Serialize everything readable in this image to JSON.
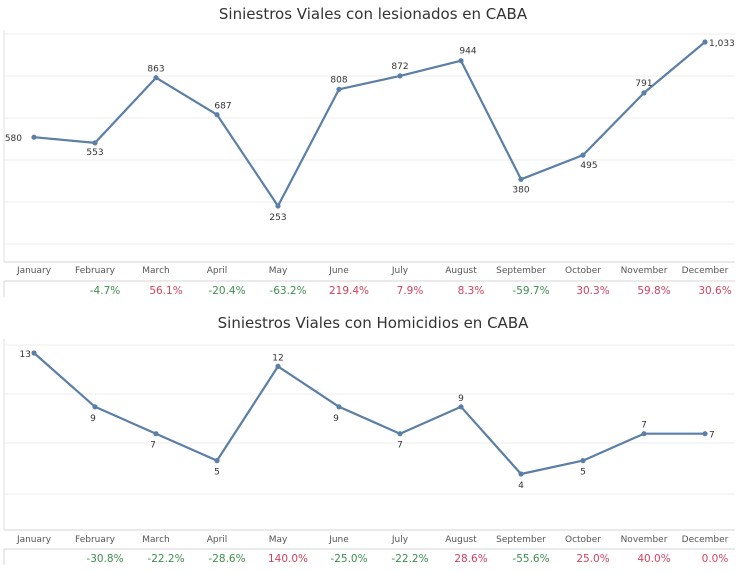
{
  "chart_data": [
    {
      "type": "line",
      "title": "Siniestros Viales con lesionados en CABA",
      "categories": [
        "January",
        "February",
        "March",
        "April",
        "May",
        "June",
        "July",
        "August",
        "September",
        "October",
        "November",
        "December"
      ],
      "values": [
        580,
        553,
        863,
        687,
        253,
        808,
        872,
        944,
        380,
        495,
        791,
        1033
      ],
      "value_labels": [
        "580",
        "553",
        "863",
        "687",
        "253",
        "808",
        "872",
        "944",
        "380",
        "495",
        "791",
        "1,033"
      ],
      "pct_change": [
        "",
        "-4.7%",
        "56.1%",
        "-20.4%",
        "-63.2%",
        "219.4%",
        "7.9%",
        "8.3%",
        "-59.7%",
        "30.3%",
        "59.8%",
        "30.6%"
      ],
      "ylim": [
        0,
        1100
      ],
      "grid": true,
      "line_color": "#5b7fa6",
      "positive_color": "#d0435f",
      "negative_color": "#3e8e4e"
    },
    {
      "type": "line",
      "title": "Siniestros Viales con Homicidios en CABA",
      "categories": [
        "January",
        "February",
        "March",
        "April",
        "May",
        "June",
        "July",
        "August",
        "September",
        "October",
        "November",
        "December"
      ],
      "values": [
        13,
        9,
        7,
        5,
        12,
        9,
        7,
        9,
        4,
        5,
        7,
        7
      ],
      "value_labels": [
        "13",
        "9",
        "7",
        "5",
        "12",
        "9",
        "7",
        "9",
        "4",
        "5",
        "7",
        "7"
      ],
      "pct_change": [
        "",
        "-30.8%",
        "-22.2%",
        "-28.6%",
        "140.0%",
        "-25.0%",
        "-22.2%",
        "28.6%",
        "-55.6%",
        "25.0%",
        "40.0%",
        "0.0%"
      ],
      "ylim": [
        0,
        14
      ],
      "grid": true,
      "line_color": "#5b7fa6",
      "positive_color": "#d0435f",
      "negative_color": "#3e8e4e"
    }
  ]
}
